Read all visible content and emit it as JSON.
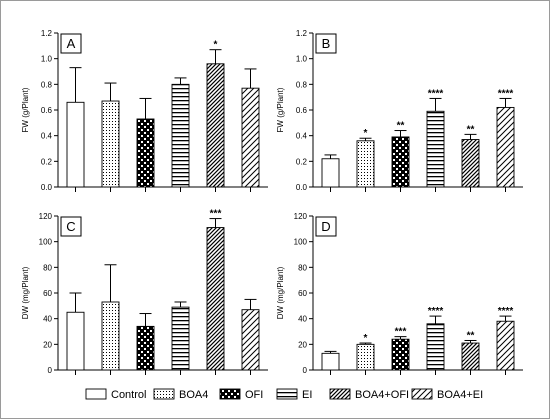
{
  "colors": {
    "axis": "#000000",
    "bar_stroke": "#000000",
    "bar_fill": "#ffffff",
    "frame": "#9a9a9a"
  },
  "legend": {
    "placement": "bottom",
    "items": [
      {
        "label": "Control",
        "pattern": "solid-white"
      },
      {
        "label": "BOA4",
        "pattern": "dots"
      },
      {
        "label": "OFI",
        "pattern": "checker"
      },
      {
        "label": "EI",
        "pattern": "horizontal-lines"
      },
      {
        "label": "BOA4+OFI",
        "pattern": "diagonal-dense"
      },
      {
        "label": "BOA4+EI",
        "pattern": "diagonal-sparse"
      }
    ]
  },
  "chart_data": [
    {
      "type": "bar",
      "panel": "A",
      "ylabel": "FW  (g/Plant)",
      "ylim": [
        0,
        1.2
      ],
      "yticks": [
        "0.0",
        "0.2",
        "0.4",
        "0.6",
        "0.8",
        "1.0",
        "1.2"
      ],
      "categories": [
        "Control",
        "BOA4",
        "OFI",
        "EI",
        "BOA4+OFI",
        "BOA4+EI"
      ],
      "values": [
        0.66,
        0.67,
        0.53,
        0.8,
        0.96,
        0.77
      ],
      "errors": [
        0.27,
        0.14,
        0.16,
        0.05,
        0.11,
        0.15
      ],
      "significance": [
        "",
        "",
        "",
        "",
        "*",
        ""
      ]
    },
    {
      "type": "bar",
      "panel": "B",
      "ylabel": "FW  (g/Plant)",
      "ylim": [
        0,
        1.2
      ],
      "yticks": [
        "0.0",
        "0.2",
        "0.4",
        "0.6",
        "0.8",
        "1.0",
        "1.2"
      ],
      "categories": [
        "Control",
        "BOA4",
        "OFI",
        "EI",
        "BOA4+OFI",
        "BOA4+EI"
      ],
      "values": [
        0.22,
        0.36,
        0.39,
        0.59,
        0.37,
        0.62
      ],
      "errors": [
        0.03,
        0.02,
        0.05,
        0.1,
        0.04,
        0.07
      ],
      "significance": [
        "",
        "*",
        "**",
        "****",
        "**",
        "****"
      ]
    },
    {
      "type": "bar",
      "panel": "C",
      "ylabel": "DW  (mg/Plant)",
      "ylim": [
        0,
        120
      ],
      "yticks": [
        "0",
        "20",
        "40",
        "60",
        "80",
        "100",
        "120"
      ],
      "categories": [
        "Control",
        "BOA4",
        "OFI",
        "EI",
        "BOA4+OFI",
        "BOA4+EI"
      ],
      "values": [
        45,
        53,
        34,
        49,
        111,
        47
      ],
      "errors": [
        15,
        29,
        10,
        4,
        7,
        8
      ],
      "significance": [
        "",
        "",
        "",
        "",
        "***",
        ""
      ]
    },
    {
      "type": "bar",
      "panel": "D",
      "ylabel": "DW  (mg/Plant)",
      "ylim": [
        0,
        120
      ],
      "yticks": [
        "0",
        "20",
        "40",
        "60",
        "80",
        "100",
        "120"
      ],
      "categories": [
        "Control",
        "BOA4",
        "OFI",
        "EI",
        "BOA4+OFI",
        "BOA4+EI"
      ],
      "values": [
        13,
        20,
        24,
        36,
        21,
        38
      ],
      "errors": [
        1.5,
        1,
        2,
        6,
        2,
        4
      ],
      "significance": [
        "",
        "*",
        "***",
        "****",
        "**",
        "****"
      ]
    }
  ]
}
